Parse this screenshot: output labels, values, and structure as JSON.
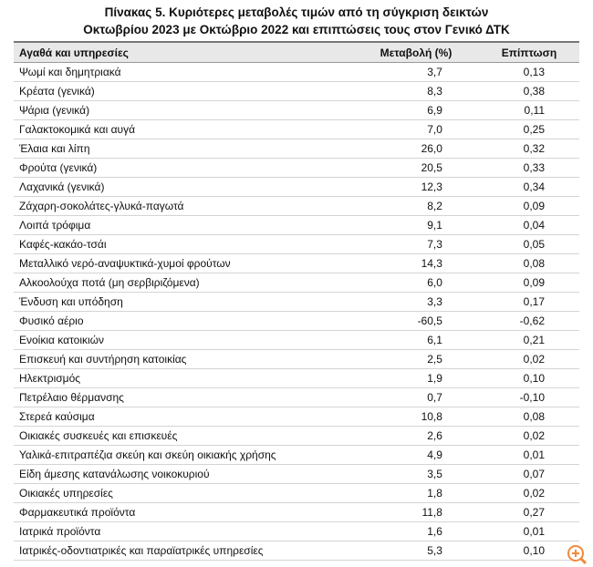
{
  "title": [
    "Πίνακας  5. Κυριότερες μεταβολές τιμών από τη σύγκριση δεικτών",
    "Οκτωβρίου 2023 με Οκτώβριο 2022 και επιπτώσεις τους στον Γενικό ΔΤΚ"
  ],
  "table": {
    "header": [
      "Αγαθά και υπηρεσίες",
      "Μεταβολή (%)",
      "Επίπτωση"
    ],
    "rows": [
      [
        "Ψωμί και δημητριακά",
        "3,7",
        "0,13"
      ],
      [
        "Κρέατα (γενικά)",
        "8,3",
        "0,38"
      ],
      [
        "Ψάρια (γενικά)",
        "6,9",
        "0,11"
      ],
      [
        "Γαλακτοκομικά και αυγά",
        "7,0",
        "0,25"
      ],
      [
        "Έλαια και λίπη",
        "26,0",
        "0,32"
      ],
      [
        "Φρούτα (γενικά)",
        "20,5",
        "0,33"
      ],
      [
        "Λαχανικά (γενικά)",
        "12,3",
        "0,34"
      ],
      [
        "Ζάχαρη-σοκολάτες-γλυκά-παγωτά",
        "8,2",
        "0,09"
      ],
      [
        "Λοιπά τρόφιμα",
        "9,1",
        "0,04"
      ],
      [
        "Καφές-κακάο-τσάι",
        "7,3",
        "0,05"
      ],
      [
        "Μεταλλικό νερό-αναψυκτικά-χυμοί φρούτων",
        "14,3",
        "0,08"
      ],
      [
        "Αλκοολούχα ποτά (μη σερβιριζόμενα)",
        "6,0",
        "0,09"
      ],
      [
        "Ένδυση και υπόδηση",
        "3,3",
        "0,17"
      ],
      [
        "Φυσικό αέριο",
        "-60,5",
        "-0,62"
      ],
      [
        "Ενοίκια κατοικιών",
        "6,1",
        "0,21"
      ],
      [
        "Επισκευή και συντήρηση κατοικίας",
        "2,5",
        "0,02"
      ],
      [
        "Ηλεκτρισμός",
        "1,9",
        "0,10"
      ],
      [
        "Πετρέλαιο θέρμανσης",
        "0,7",
        "-0,10"
      ],
      [
        "Στερεά καύσιμα",
        "10,8",
        "0,08"
      ],
      [
        "Οικιακές συσκευές και επισκευές",
        "2,6",
        "0,02"
      ],
      [
        "Υαλικά-επιτραπέζια σκεύη και σκεύη οικιακής χρήσης",
        "4,9",
        "0,01"
      ],
      [
        "Είδη άμεσης κατανάλωσης νοικοκυριού",
        "3,5",
        "0,07"
      ],
      [
        "Οικιακές υπηρεσίες",
        "1,8",
        "0,02"
      ],
      [
        "Φαρμακευτικά προϊόντα",
        "11,8",
        "0,27"
      ],
      [
        "Ιατρικά προϊόντα",
        "1,6",
        "0,01"
      ],
      [
        "Ιατρικές-οδοντιατρικές και παραϊατρικές υπηρεσίες",
        "5,3",
        "0,10"
      ]
    ]
  }
}
